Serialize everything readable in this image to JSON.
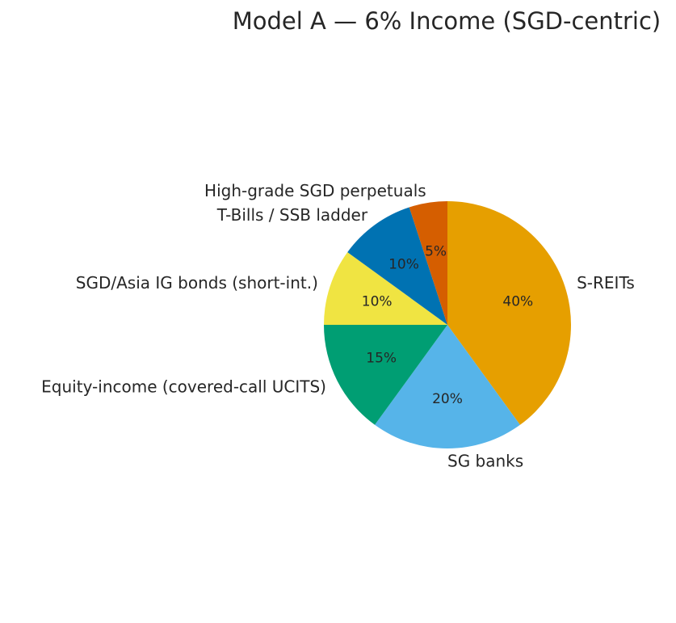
{
  "chart_data": {
    "type": "pie",
    "title": "Model A — 6% Income (SGD-centric)",
    "start_angle_deg": 90,
    "direction": "clockwise",
    "slices": [
      {
        "label": "S-REITs",
        "value": 40,
        "pct_label": "40%",
        "color": "#E69F00"
      },
      {
        "label": "SG banks",
        "value": 20,
        "pct_label": "20%",
        "color": "#56B4E9"
      },
      {
        "label": "Equity-income (covered-call UCITS)",
        "value": 15,
        "pct_label": "15%",
        "color": "#009E73"
      },
      {
        "label": "SGD/Asia IG bonds (short-int.)",
        "value": 10,
        "pct_label": "10%",
        "color": "#F0E442"
      },
      {
        "label": "T-Bills / SSB ladder",
        "value": 10,
        "pct_label": "10%",
        "color": "#0072B2"
      },
      {
        "label": "High-grade SGD perpetuals",
        "value": 5,
        "pct_label": "5%",
        "color": "#D55E00"
      }
    ]
  }
}
